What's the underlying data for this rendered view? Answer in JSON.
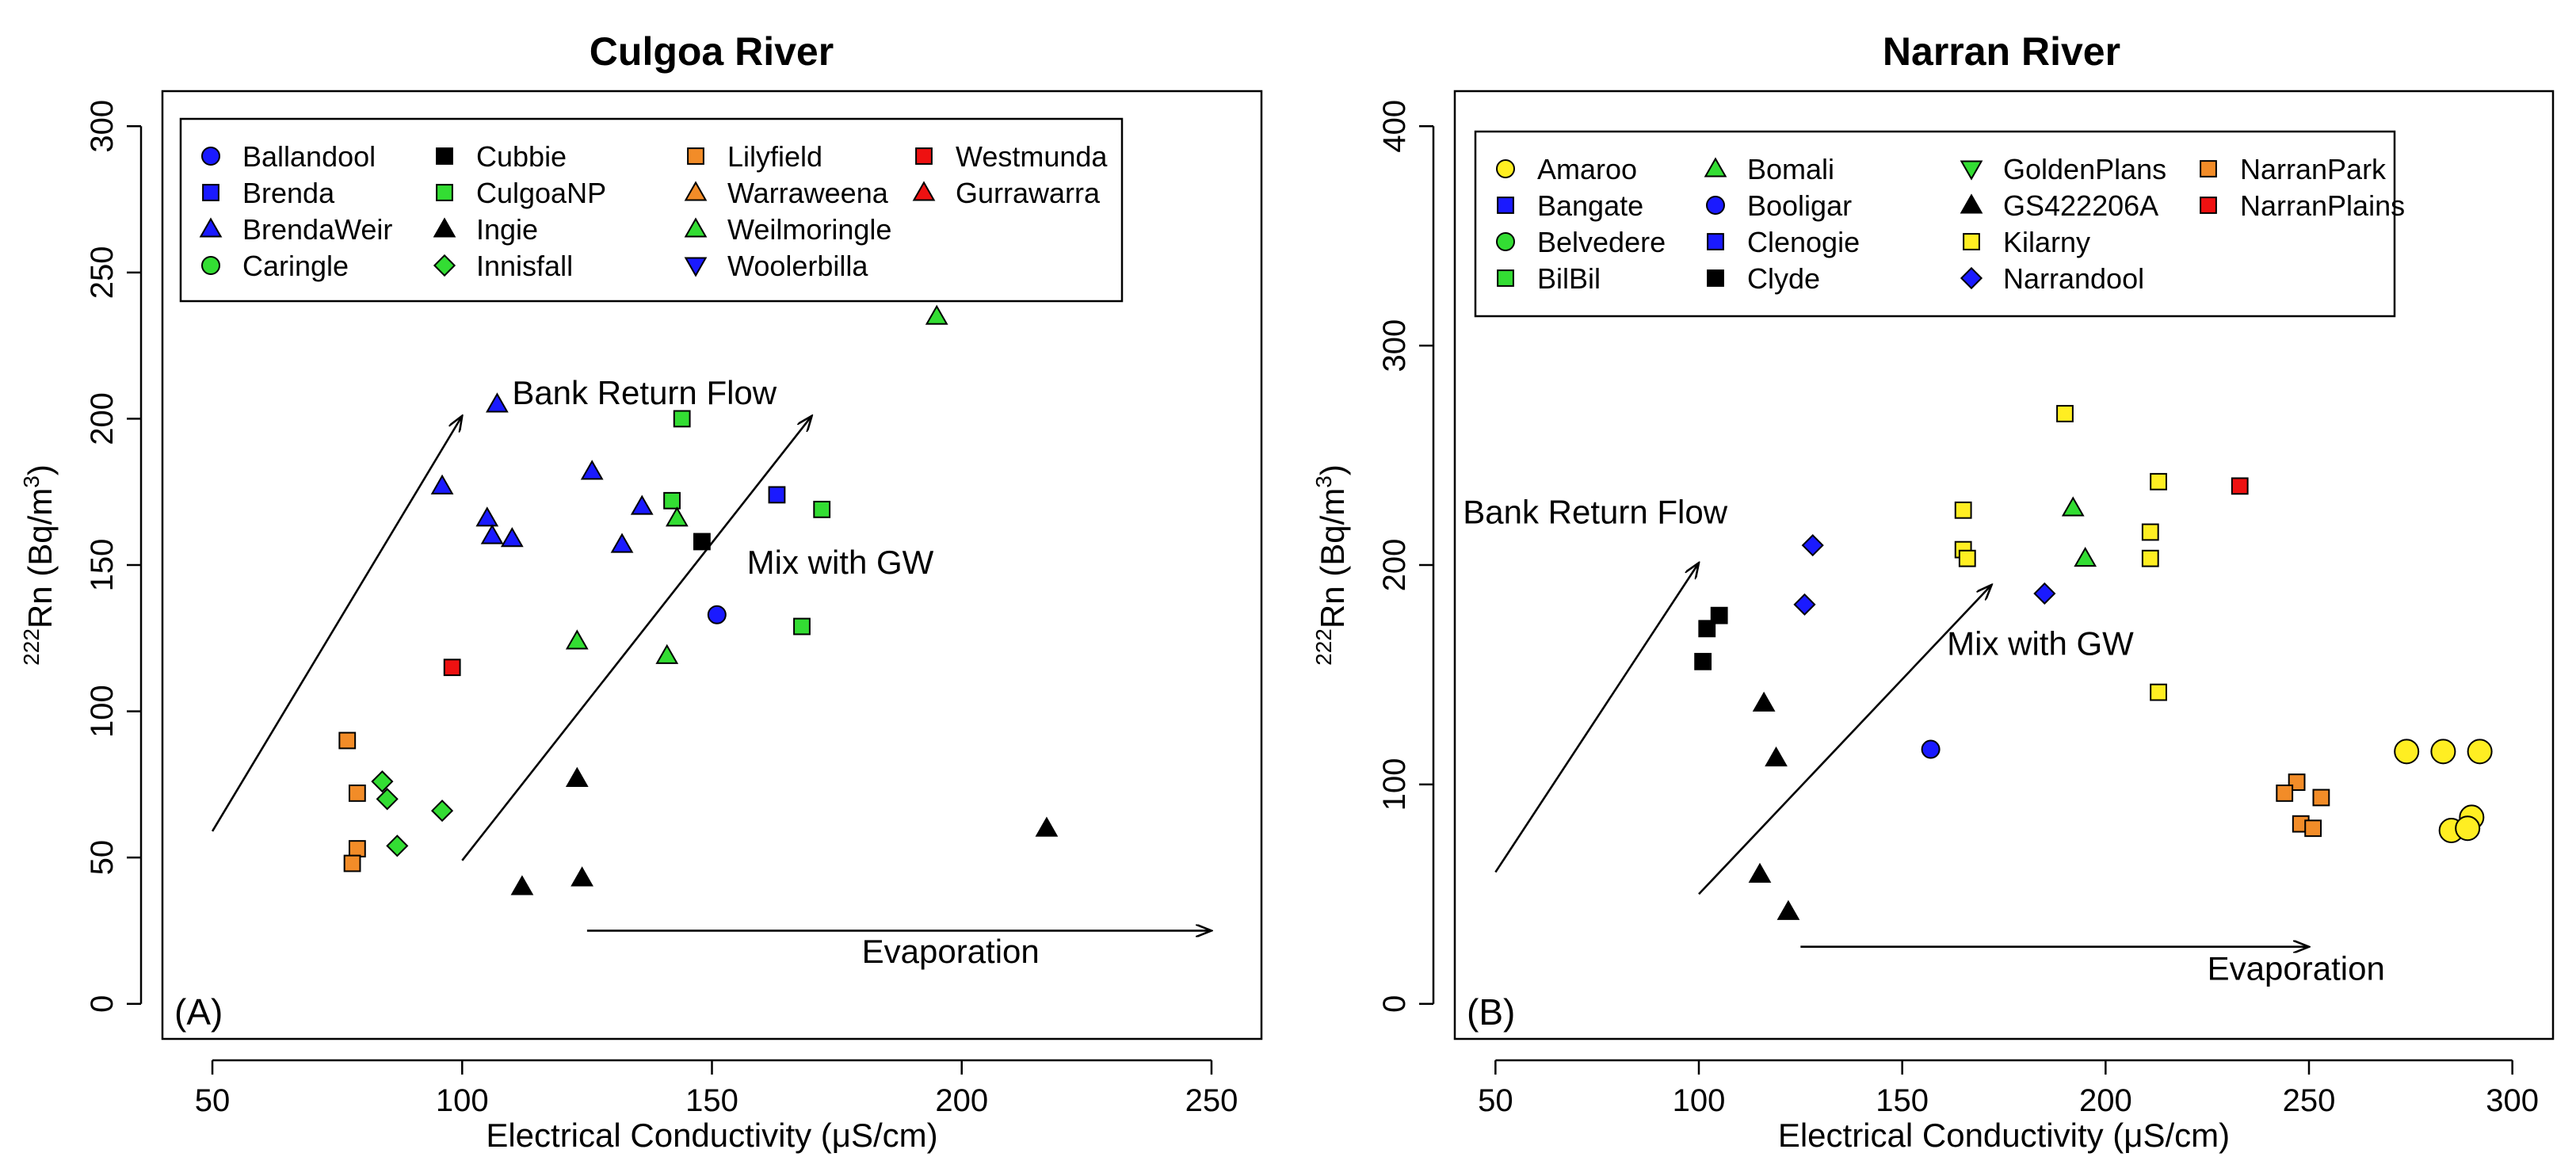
{
  "chart_data": [
    {
      "type": "scatter",
      "title": "Culgoa River",
      "panel_label": "(A)",
      "xlabel": "Electrical Conductivity (μS/cm)",
      "ylabel": "222Rn (Bq/m3)",
      "ylabel_parts": {
        "sup1": "222",
        "base": "Rn (Bq/m",
        "sup2": "3",
        "tail": ")"
      },
      "xlim": [
        40,
        260
      ],
      "ylim": [
        -12,
        312
      ],
      "xticks": [
        50,
        100,
        150,
        200,
        250
      ],
      "yticks": [
        0,
        50,
        100,
        150,
        200,
        250,
        300
      ],
      "legend_columns": 4,
      "legend": [
        {
          "name": "Ballandool",
          "marker": "circle",
          "color": "#1a1aff"
        },
        {
          "name": "Brenda",
          "marker": "square",
          "color": "#1a1aff"
        },
        {
          "name": "BrendaWeir",
          "marker": "triangle-up",
          "color": "#1a1aff"
        },
        {
          "name": "Caringle",
          "marker": "circle",
          "color": "#33dd33"
        },
        {
          "name": "Cubbie",
          "marker": "square",
          "color": "#000000"
        },
        {
          "name": "CulgoaNP",
          "marker": "square",
          "color": "#33dd33"
        },
        {
          "name": "Ingie",
          "marker": "triangle-up",
          "color": "#000000"
        },
        {
          "name": "Innisfall",
          "marker": "diamond",
          "color": "#33dd33"
        },
        {
          "name": "Lilyfield",
          "marker": "square",
          "color": "#f28c28"
        },
        {
          "name": "Warraweena",
          "marker": "triangle-up",
          "color": "#f28c28"
        },
        {
          "name": "Weilmoringle",
          "marker": "triangle-up",
          "color": "#33dd33"
        },
        {
          "name": "Woolerbilla",
          "marker": "triangle-down",
          "color": "#1a1aff"
        },
        {
          "name": "Westmunda",
          "marker": "square",
          "color": "#ee1111"
        },
        {
          "name": "Gurrawarra",
          "marker": "triangle-up",
          "color": "#ee1111"
        }
      ],
      "series": [
        {
          "name": "Ballandool",
          "points": [
            [
              151,
              133
            ]
          ]
        },
        {
          "name": "Brenda",
          "points": [
            [
              163,
              174
            ]
          ]
        },
        {
          "name": "BrendaWeir",
          "points": [
            [
              107,
              205
            ],
            [
              96,
              177
            ],
            [
              105,
              166
            ],
            [
              106,
              160
            ],
            [
              110,
              159
            ],
            [
              126,
              182
            ],
            [
              132,
              157
            ],
            [
              136,
              170
            ]
          ]
        },
        {
          "name": "Cubbie",
          "points": [
            [
              148,
              158
            ]
          ]
        },
        {
          "name": "CulgoaNP",
          "points": [
            [
              144,
              200
            ],
            [
              142,
              172
            ],
            [
              172,
              169
            ],
            [
              168,
              129
            ]
          ]
        },
        {
          "name": "Ingie",
          "points": [
            [
              123,
              77
            ],
            [
              124,
              43
            ],
            [
              112,
              40
            ],
            [
              217,
              60
            ]
          ]
        },
        {
          "name": "Innisfall",
          "points": [
            [
              84,
              76
            ],
            [
              85,
              70
            ],
            [
              87,
              54
            ],
            [
              96,
              66
            ]
          ]
        },
        {
          "name": "Lilyfield",
          "points": [
            [
              77,
              90
            ],
            [
              79,
              72
            ],
            [
              79,
              53
            ],
            [
              78,
              48
            ]
          ]
        },
        {
          "name": "Weilmoringle",
          "points": [
            [
              195,
              235
            ],
            [
              123,
              124
            ],
            [
              141,
              119
            ],
            [
              143,
              166
            ]
          ]
        },
        {
          "name": "Westmunda",
          "points": [
            [
              98,
              115
            ]
          ]
        }
      ],
      "annotations": [
        {
          "text": "Bank Return Flow",
          "label_at": [
            110,
            205
          ],
          "arrow_from": [
            50,
            59
          ],
          "arrow_to": [
            100,
            201
          ]
        },
        {
          "text": "Mix with GW",
          "label_at": [
            157,
            147
          ],
          "arrow_from": [
            100,
            49
          ],
          "arrow_to": [
            170,
            201
          ]
        },
        {
          "text": "Evaporation",
          "label_at": [
            180,
            14
          ],
          "arrow_from": [
            125,
            25
          ],
          "arrow_to": [
            250,
            25
          ]
        }
      ]
    },
    {
      "type": "scatter",
      "title": "Narran River",
      "panel_label": "(B)",
      "xlabel": "Electrical Conductivity (μS/cm)",
      "ylabel": "222Rn (Bq/m3)",
      "ylabel_parts": {
        "sup1": "222",
        "base": "Rn (Bq/m",
        "sup2": "3",
        "tail": ")"
      },
      "xlim": [
        40,
        310
      ],
      "ylim": [
        -16,
        416
      ],
      "xticks": [
        50,
        100,
        150,
        200,
        250,
        300
      ],
      "yticks": [
        0,
        100,
        200,
        300,
        400
      ],
      "legend_columns": 4,
      "legend": [
        {
          "name": "Amaroo",
          "marker": "circle",
          "color": "#ffee22"
        },
        {
          "name": "Bangate",
          "marker": "square",
          "color": "#1a1aff"
        },
        {
          "name": "Belvedere",
          "marker": "circle",
          "color": "#33dd33"
        },
        {
          "name": "BilBil",
          "marker": "square",
          "color": "#33dd33"
        },
        {
          "name": "Bomali",
          "marker": "triangle-up",
          "color": "#33dd33"
        },
        {
          "name": "Booligar",
          "marker": "circle",
          "color": "#1a1aff"
        },
        {
          "name": "Clenogie",
          "marker": "square",
          "color": "#1a1aff"
        },
        {
          "name": "Clyde",
          "marker": "square",
          "color": "#000000"
        },
        {
          "name": "GoldenPlans",
          "marker": "triangle-down",
          "color": "#33dd33"
        },
        {
          "name": "GS422206A",
          "marker": "triangle-up",
          "color": "#000000"
        },
        {
          "name": "Kilarny",
          "marker": "square",
          "color": "#ffee22"
        },
        {
          "name": "Narrandool",
          "marker": "diamond",
          "color": "#1a1aff"
        },
        {
          "name": "NarranPark",
          "marker": "square",
          "color": "#f28c28"
        },
        {
          "name": "NarranPlains",
          "marker": "square",
          "color": "#ee1111"
        }
      ],
      "series": [
        {
          "name": "Amaroo",
          "large": true,
          "points": [
            [
              274,
              115
            ],
            [
              283,
              115
            ],
            [
              292,
              115
            ],
            [
              290,
              85
            ],
            [
              285,
              79
            ],
            [
              289,
              80
            ]
          ]
        },
        {
          "name": "Bomali",
          "points": [
            [
              192,
              226
            ],
            [
              195,
              203
            ]
          ]
        },
        {
          "name": "Booligar",
          "points": [
            [
              157,
              116
            ]
          ]
        },
        {
          "name": "Clyde",
          "points": [
            [
              102,
              171
            ],
            [
              105,
              177
            ],
            [
              101,
              156
            ]
          ]
        },
        {
          "name": "GS422206A",
          "points": [
            [
              116,
              137
            ],
            [
              119,
              112
            ],
            [
              115,
              59
            ],
            [
              122,
              42
            ]
          ]
        },
        {
          "name": "Kilarny",
          "points": [
            [
              190,
              269
            ],
            [
              165,
              225
            ],
            [
              165,
              207
            ],
            [
              166,
              203
            ],
            [
              213,
              238
            ],
            [
              211,
              215
            ],
            [
              211,
              203
            ],
            [
              213,
              142
            ]
          ]
        },
        {
          "name": "Narrandool",
          "points": [
            [
              128,
              209
            ],
            [
              126,
              182
            ],
            [
              185,
              187
            ]
          ]
        },
        {
          "name": "NarranPark",
          "points": [
            [
              247,
              101
            ],
            [
              244,
              96
            ],
            [
              253,
              94
            ],
            [
              248,
              82
            ],
            [
              251,
              80
            ]
          ]
        },
        {
          "name": "NarranPlains",
          "points": [
            [
              233,
              236
            ]
          ]
        }
      ],
      "annotations": [
        {
          "text": "Bank Return Flow",
          "label_at": [
            42,
            219
          ],
          "arrow_from": [
            50,
            60
          ],
          "arrow_to": [
            100,
            201
          ]
        },
        {
          "text": "Mix with GW",
          "label_at": [
            161,
            159
          ],
          "arrow_from": [
            100,
            50
          ],
          "arrow_to": [
            172,
            191
          ]
        },
        {
          "text": "Evaporation",
          "label_at": [
            225,
            11
          ],
          "arrow_from": [
            125,
            26
          ],
          "arrow_to": [
            250,
            26
          ]
        }
      ]
    }
  ]
}
